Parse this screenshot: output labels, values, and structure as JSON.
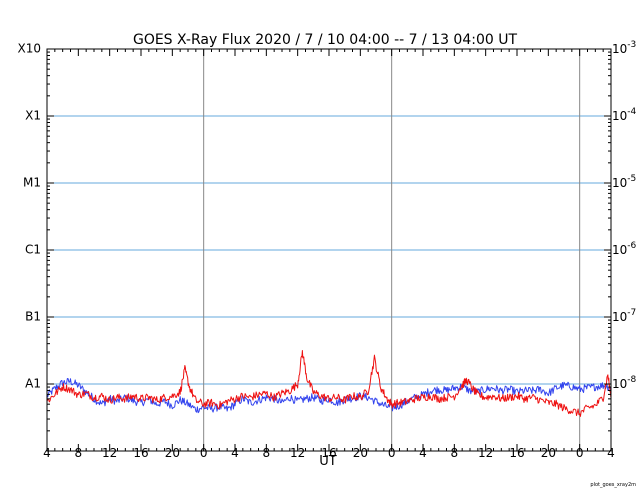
{
  "chart_data": {
    "type": "line",
    "title": "GOES X-Ray Flux   2020  /  7  /  10    04:00 --   7  /  13    04:00    UT",
    "xlabel": "UT",
    "x_unit": "hours since 2020-07-10 04:00 UT",
    "xlim": [
      0,
      72
    ],
    "x_ticks": [
      {
        "x": 0,
        "label": "4"
      },
      {
        "x": 4,
        "label": "8"
      },
      {
        "x": 8,
        "label": "12"
      },
      {
        "x": 12,
        "label": "16"
      },
      {
        "x": 16,
        "label": "20"
      },
      {
        "x": 20,
        "label": "0"
      },
      {
        "x": 24,
        "label": "4"
      },
      {
        "x": 28,
        "label": "8"
      },
      {
        "x": 32,
        "label": "12"
      },
      {
        "x": 36,
        "label": "16"
      },
      {
        "x": 40,
        "label": "20"
      },
      {
        "x": 44,
        "label": "0"
      },
      {
        "x": 48,
        "label": "4"
      },
      {
        "x": 52,
        "label": "8"
      },
      {
        "x": 56,
        "label": "12"
      },
      {
        "x": 60,
        "label": "16"
      },
      {
        "x": 64,
        "label": "20"
      },
      {
        "x": 68,
        "label": "0"
      },
      {
        "x": 72,
        "label": "4"
      }
    ],
    "day_boundaries": [
      20,
      44,
      68
    ],
    "y_scale": "log",
    "ylim_exp": [
      -9,
      -3
    ],
    "left_axis_labels": [
      {
        "exp": -3,
        "label": "X10"
      },
      {
        "exp": -4,
        "label": "X1"
      },
      {
        "exp": -5,
        "label": "M1"
      },
      {
        "exp": -6,
        "label": "C1"
      },
      {
        "exp": -7,
        "label": "B1"
      },
      {
        "exp": -8,
        "label": "A1"
      }
    ],
    "right_axis_labels": [
      {
        "exp": -3,
        "base": "10",
        "power": "-3"
      },
      {
        "exp": -4,
        "base": "10",
        "power": "-4"
      },
      {
        "exp": -5,
        "base": "10",
        "power": "-5"
      },
      {
        "exp": -6,
        "base": "10",
        "power": "-6"
      },
      {
        "exp": -7,
        "base": "10",
        "power": "-7"
      },
      {
        "exp": -8,
        "base": "10",
        "power": "-8"
      }
    ],
    "gridlines_exp": [
      -4,
      -5,
      -6,
      -7,
      -8
    ],
    "series": [
      {
        "name": "blue",
        "color": "#3344ee",
        "log10_flux": [
          [
            0,
            -8.18
          ],
          [
            1,
            -8.07
          ],
          [
            2,
            -7.98
          ],
          [
            3,
            -7.96
          ],
          [
            4,
            -8.02
          ],
          [
            5,
            -8.12
          ],
          [
            6,
            -8.22
          ],
          [
            7,
            -8.3
          ],
          [
            8,
            -8.22
          ],
          [
            9,
            -8.26
          ],
          [
            10,
            -8.2
          ],
          [
            11,
            -8.25
          ],
          [
            12,
            -8.28
          ],
          [
            13,
            -8.23
          ],
          [
            14,
            -8.3
          ],
          [
            15,
            -8.26
          ],
          [
            16,
            -8.32
          ],
          [
            17,
            -8.24
          ],
          [
            18,
            -8.3
          ],
          [
            19,
            -8.38
          ],
          [
            20,
            -8.35
          ],
          [
            21,
            -8.37
          ],
          [
            22,
            -8.34
          ],
          [
            23,
            -8.38
          ],
          [
            24,
            -8.3
          ],
          [
            25,
            -8.22
          ],
          [
            26,
            -8.28
          ],
          [
            27,
            -8.24
          ],
          [
            28,
            -8.2
          ],
          [
            29,
            -8.22
          ],
          [
            30,
            -8.28
          ],
          [
            31,
            -8.2
          ],
          [
            32,
            -8.26
          ],
          [
            33,
            -8.22
          ],
          [
            34,
            -8.2
          ],
          [
            35,
            -8.25
          ],
          [
            36,
            -8.22
          ],
          [
            37,
            -8.28
          ],
          [
            38,
            -8.23
          ],
          [
            39,
            -8.21
          ],
          [
            40,
            -8.18
          ],
          [
            41,
            -8.2
          ],
          [
            42,
            -8.26
          ],
          [
            43,
            -8.32
          ],
          [
            44,
            -8.36
          ],
          [
            45,
            -8.32
          ],
          [
            46,
            -8.26
          ],
          [
            47,
            -8.2
          ],
          [
            48,
            -8.16
          ],
          [
            49,
            -8.1
          ],
          [
            50,
            -8.08
          ],
          [
            51,
            -8.1
          ],
          [
            52,
            -8.06
          ],
          [
            53,
            -8.04
          ],
          [
            54,
            -8.1
          ],
          [
            55,
            -8.12
          ],
          [
            56,
            -8.08
          ],
          [
            57,
            -8.06
          ],
          [
            58,
            -8.1
          ],
          [
            59,
            -8.08
          ],
          [
            60,
            -8.12
          ],
          [
            61,
            -8.1
          ],
          [
            62,
            -8.1
          ],
          [
            63,
            -8.08
          ],
          [
            64,
            -8.14
          ],
          [
            65,
            -8.06
          ],
          [
            66,
            -8.02
          ],
          [
            67,
            -8.04
          ],
          [
            68,
            -8.08
          ],
          [
            69,
            -8.06
          ],
          [
            70,
            -8.04
          ],
          [
            71,
            -8.02
          ],
          [
            72,
            -8.05
          ]
        ]
      },
      {
        "name": "red",
        "color": "#ee1111",
        "log10_flux": [
          [
            0,
            -8.26
          ],
          [
            1,
            -8.15
          ],
          [
            2,
            -8.04
          ],
          [
            3,
            -8.08
          ],
          [
            4,
            -8.16
          ],
          [
            5,
            -8.14
          ],
          [
            6,
            -8.2
          ],
          [
            7,
            -8.18
          ],
          [
            8,
            -8.24
          ],
          [
            9,
            -8.2
          ],
          [
            10,
            -8.22
          ],
          [
            11,
            -8.18
          ],
          [
            12,
            -8.22
          ],
          [
            13,
            -8.2
          ],
          [
            14,
            -8.24
          ],
          [
            15,
            -8.2
          ],
          [
            16,
            -8.18
          ],
          [
            17,
            -8.12
          ],
          [
            17.6,
            -7.78
          ],
          [
            18.2,
            -8.05
          ],
          [
            19,
            -8.25
          ],
          [
            20,
            -8.3
          ],
          [
            21,
            -8.28
          ],
          [
            22,
            -8.32
          ],
          [
            23,
            -8.26
          ],
          [
            24,
            -8.22
          ],
          [
            25,
            -8.18
          ],
          [
            26,
            -8.2
          ],
          [
            27,
            -8.16
          ],
          [
            28,
            -8.14
          ],
          [
            29,
            -8.2
          ],
          [
            30,
            -8.14
          ],
          [
            31,
            -8.1
          ],
          [
            32,
            -8.0
          ],
          [
            32.6,
            -7.52
          ],
          [
            33.2,
            -7.92
          ],
          [
            34,
            -8.12
          ],
          [
            35,
            -8.18
          ],
          [
            36,
            -8.22
          ],
          [
            37,
            -8.2
          ],
          [
            38,
            -8.24
          ],
          [
            39,
            -8.18
          ],
          [
            40,
            -8.2
          ],
          [
            41,
            -8.1
          ],
          [
            41.8,
            -7.62
          ],
          [
            42.6,
            -8.05
          ],
          [
            43.4,
            -8.22
          ],
          [
            44,
            -8.3
          ],
          [
            45,
            -8.28
          ],
          [
            46,
            -8.26
          ],
          [
            47,
            -8.22
          ],
          [
            48,
            -8.2
          ],
          [
            49,
            -8.18
          ],
          [
            50,
            -8.22
          ],
          [
            51,
            -8.2
          ],
          [
            52,
            -8.18
          ],
          [
            53,
            -8.02
          ],
          [
            53.6,
            -7.94
          ],
          [
            54.4,
            -8.08
          ],
          [
            55,
            -8.16
          ],
          [
            56,
            -8.2
          ],
          [
            57,
            -8.18
          ],
          [
            58,
            -8.22
          ],
          [
            59,
            -8.2
          ],
          [
            60,
            -8.18
          ],
          [
            61,
            -8.22
          ],
          [
            62,
            -8.2
          ],
          [
            63,
            -8.24
          ],
          [
            64,
            -8.28
          ],
          [
            65,
            -8.3
          ],
          [
            66,
            -8.36
          ],
          [
            67,
            -8.4
          ],
          [
            68,
            -8.44
          ],
          [
            69,
            -8.36
          ],
          [
            70,
            -8.32
          ],
          [
            71,
            -8.2
          ],
          [
            71.6,
            -7.86
          ],
          [
            72,
            -8.2
          ]
        ]
      }
    ],
    "gridline_color": "#66aadd",
    "day_line_color": "#888888"
  },
  "credit": "plot_goes_xray2m"
}
